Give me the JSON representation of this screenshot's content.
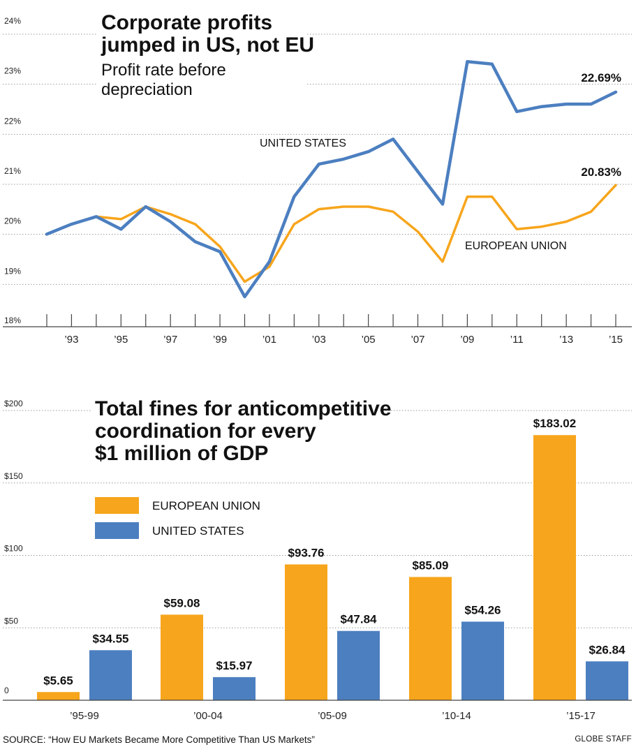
{
  "colors": {
    "eu": "#f7a51c",
    "us": "#4c7fc0"
  },
  "chart_data": [
    {
      "type": "line",
      "title_lines": [
        "Corporate profits",
        "jumped in US, not EU"
      ],
      "subtitle_lines": [
        "Profit rate before",
        "depreciation"
      ],
      "ylim": [
        18,
        24
      ],
      "yticks": [
        {
          "value": 18,
          "label": "18%"
        },
        {
          "value": 19,
          "label": "19%"
        },
        {
          "value": 20,
          "label": "20%"
        },
        {
          "value": 21,
          "label": "21%"
        },
        {
          "value": 22,
          "label": "22%"
        },
        {
          "value": 23,
          "label": "23%"
        },
        {
          "value": 24,
          "label": "24%"
        }
      ],
      "x": [
        1992,
        1993,
        1994,
        1995,
        1996,
        1997,
        1998,
        1999,
        2000,
        2001,
        2002,
        2003,
        2004,
        2005,
        2006,
        2007,
        2008,
        2009,
        2010,
        2011,
        2012,
        2013,
        2014,
        2015
      ],
      "xticks": [
        {
          "value": 1993,
          "label": "’93"
        },
        {
          "value": 1995,
          "label": "’95"
        },
        {
          "value": 1997,
          "label": "’97"
        },
        {
          "value": 1999,
          "label": "’99"
        },
        {
          "value": 2001,
          "label": "’01"
        },
        {
          "value": 2003,
          "label": "’03"
        },
        {
          "value": 2005,
          "label": "’05"
        },
        {
          "value": 2007,
          "label": "’07"
        },
        {
          "value": 2009,
          "label": "’09"
        },
        {
          "value": 2011,
          "label": "’11"
        },
        {
          "value": 2013,
          "label": "’13"
        },
        {
          "value": 2015,
          "label": "’15"
        }
      ],
      "series": [
        {
          "name": "EUROPEAN UNION",
          "color_key": "eu",
          "values": [
            19.85,
            20.05,
            20.2,
            20.15,
            20.4,
            20.25,
            20.05,
            19.6,
            18.9,
            19.2,
            20.05,
            20.35,
            20.4,
            20.4,
            20.3,
            19.9,
            19.3,
            20.6,
            20.6,
            19.95,
            20.0,
            20.1,
            20.3,
            20.83
          ],
          "end_label": "20.83%"
        },
        {
          "name": "UNITED STATES",
          "color_key": "us",
          "values": [
            19.85,
            20.05,
            20.2,
            19.95,
            20.4,
            20.1,
            19.7,
            19.5,
            18.6,
            19.3,
            20.6,
            21.25,
            21.35,
            21.5,
            21.75,
            21.1,
            20.45,
            23.3,
            23.25,
            22.3,
            22.4,
            22.45,
            22.45,
            22.69
          ],
          "end_label": "22.69%"
        }
      ]
    },
    {
      "type": "bar",
      "title_lines": [
        "Total fines for anticompetitive",
        "coordination for every",
        "$1 million of GDP"
      ],
      "ylim": [
        0,
        200
      ],
      "yticks": [
        {
          "value": 0,
          "label": "0"
        },
        {
          "value": 50,
          "label": "$50"
        },
        {
          "value": 100,
          "label": "$100"
        },
        {
          "value": 150,
          "label": "$150"
        },
        {
          "value": 200,
          "label": "$200"
        }
      ],
      "categories": [
        "’95-99",
        "’00-04",
        "’05-09",
        "’10-14",
        "’15-17"
      ],
      "legend": "left",
      "series": [
        {
          "name": "EUROPEAN UNION",
          "color_key": "eu",
          "values": [
            5.65,
            59.08,
            93.76,
            85.09,
            183.02
          ],
          "labels": [
            "$5.65",
            "$59.08",
            "$93.76",
            "$85.09",
            "$183.02"
          ]
        },
        {
          "name": "UNITED STATES",
          "color_key": "us",
          "values": [
            34.55,
            15.97,
            47.84,
            54.26,
            26.84
          ],
          "labels": [
            "$34.55",
            "$15.97",
            "$47.84",
            "$54.26",
            "$26.84"
          ]
        }
      ]
    }
  ],
  "footer": {
    "source": "SOURCE: “How EU Markets Became More Competitive Than US Markets”",
    "credit": "GLOBE STAFF"
  }
}
